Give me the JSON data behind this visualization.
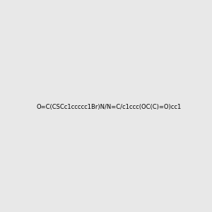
{
  "smiles": "O=C(CSCc1ccccc1Br)N/N=C/c1ccc(OC(C)=O)cc1",
  "background_color": "#e8e8e8",
  "fig_width": 3.0,
  "fig_height": 3.0,
  "dpi": 100,
  "atom_colors": {
    "Br": [
      0.722,
      0.525,
      0.043
    ],
    "S": [
      0.604,
      0.545,
      0.059
    ],
    "O": [
      1.0,
      0.0,
      0.0
    ],
    "N": [
      0.0,
      0.0,
      0.867
    ]
  }
}
